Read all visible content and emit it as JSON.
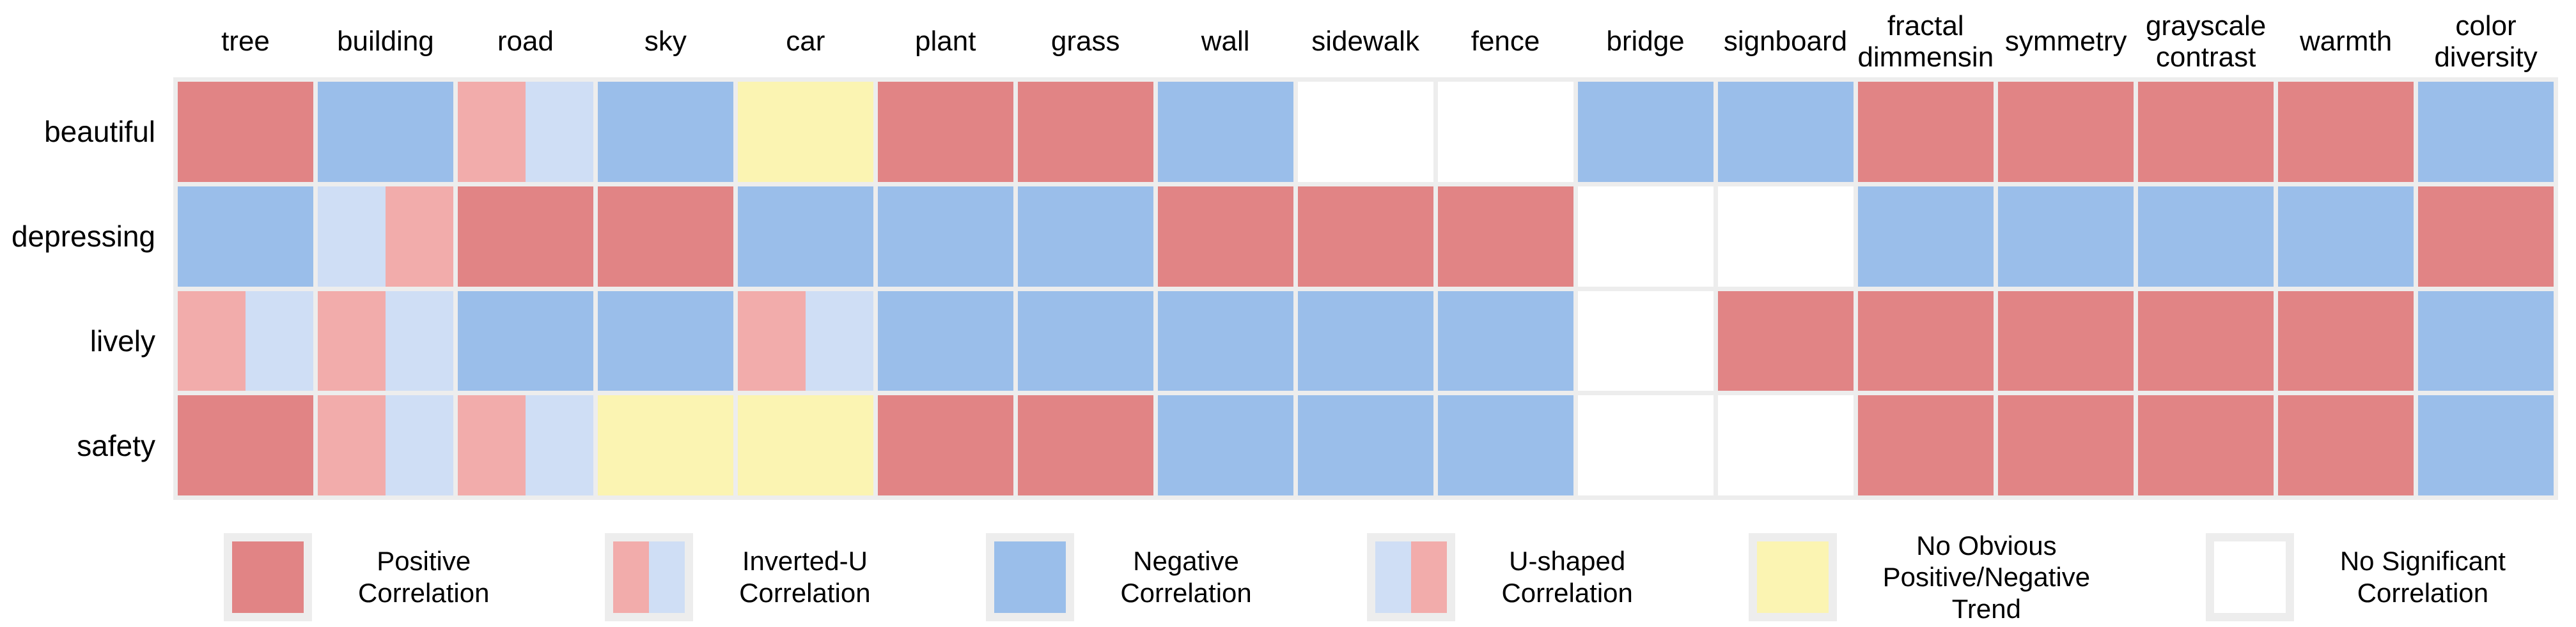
{
  "chart_data": {
    "type": "heatmap",
    "rows": [
      "beautiful",
      "depressing",
      "lively",
      "safety"
    ],
    "columns": [
      "tree",
      "building",
      "road",
      "sky",
      "car",
      "plant",
      "grass",
      "wall",
      "sidewalk",
      "fence",
      "bridge",
      "signboard",
      "fractal\ndimmensin",
      "symmetry",
      "grayscale\ncontrast",
      "warmth",
      "color\ndiversity"
    ],
    "cell_code_meanings": {
      "P": "Positive Correlation",
      "IU": "Inverted-U Correlation",
      "N": "Negative Correlation",
      "U": "U-shaped Correlation",
      "Y": "No Obvious Positive/Negative Trend",
      "X": "No Significant Correlation"
    },
    "cells": [
      [
        "P",
        "N",
        "IU",
        "N",
        "Y",
        "P",
        "P",
        "N",
        "X",
        "X",
        "N",
        "N",
        "P",
        "P",
        "P",
        "P",
        "N"
      ],
      [
        "N",
        "U",
        "P",
        "P",
        "N",
        "N",
        "N",
        "P",
        "P",
        "P",
        "X",
        "X",
        "N",
        "N",
        "N",
        "N",
        "P"
      ],
      [
        "IU",
        "IU",
        "N",
        "N",
        "IU",
        "N",
        "N",
        "N",
        "N",
        "N",
        "X",
        "P",
        "P",
        "P",
        "P",
        "P",
        "N"
      ],
      [
        "P",
        "IU",
        "IU",
        "Y",
        "Y",
        "P",
        "P",
        "N",
        "N",
        "N",
        "X",
        "X",
        "P",
        "P",
        "P",
        "P",
        "N"
      ]
    ],
    "legend": [
      {
        "swatch": "P",
        "label": "Positive\nCorrelation"
      },
      {
        "swatch": "IU",
        "label": "Inverted-U\nCorrelation"
      },
      {
        "swatch": "N",
        "label": "Negative\nCorrelation"
      },
      {
        "swatch": "U",
        "label": "U-shaped\nCorrelation"
      },
      {
        "swatch": "Y",
        "label": "No Obvious\nPositive/Negative\nTrend"
      },
      {
        "swatch": "X",
        "label": "No Significant\nCorrelation"
      }
    ],
    "colors": {
      "positive": "#e18485",
      "negative": "#9abeea",
      "inverted_u_left": "#f2acab",
      "inverted_u_right": "#cfdef5",
      "u_left": "#cfdef5",
      "u_right": "#f2acab",
      "no_trend": "#fbf4b2",
      "no_significant": "#ffffff",
      "grid_background": "#ededed"
    },
    "layout_hints": {
      "legend_position": "bottom",
      "grid": "off",
      "split_cell_ratio": 0.5
    }
  }
}
